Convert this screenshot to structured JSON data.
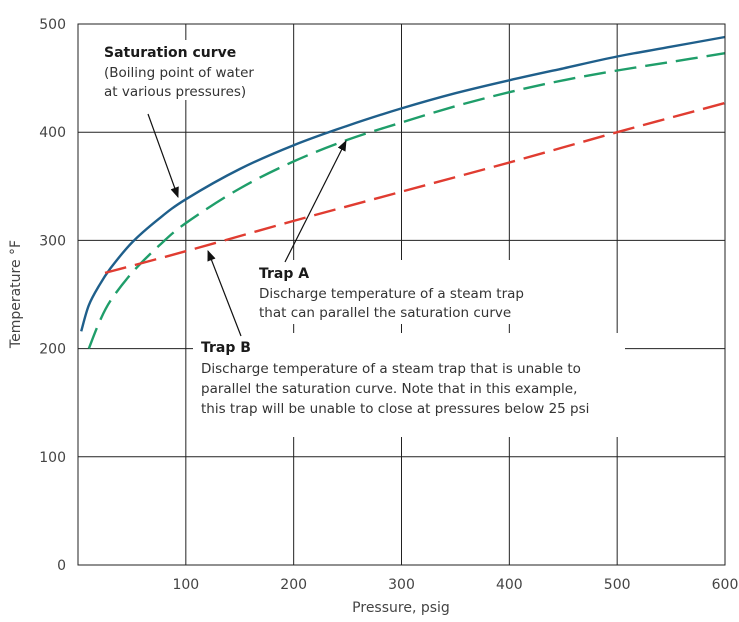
{
  "chart_data": {
    "type": "line",
    "title": "",
    "xlabel": "Pressure, psig",
    "ylabel": "Temperature °F",
    "xlim": [
      0,
      600
    ],
    "ylim": [
      0,
      500
    ],
    "x_ticks": [
      {
        "value": 100,
        "label": "100"
      },
      {
        "value": 200,
        "label": "200"
      },
      {
        "value": 300,
        "label": "300"
      },
      {
        "value": 400,
        "label": "400"
      },
      {
        "value": 500,
        "label": "500"
      },
      {
        "value": 600,
        "label": "600"
      }
    ],
    "y_ticks": [
      {
        "value": 0,
        "label": "0"
      },
      {
        "value": 100,
        "label": "100"
      },
      {
        "value": 200,
        "label": "200"
      },
      {
        "value": 300,
        "label": "300"
      },
      {
        "value": 400,
        "label": "400"
      },
      {
        "value": 500,
        "label": "500"
      }
    ],
    "grid": true,
    "series": [
      {
        "key": "saturation",
        "color": "#1f5f8b",
        "dashed": false,
        "x": [
          3,
          10,
          20,
          30,
          50,
          75,
          100,
          150,
          200,
          250,
          300,
          350,
          400,
          450,
          500,
          550,
          600
        ],
        "y": [
          216,
          240,
          259,
          274,
          298,
          320,
          338,
          366,
          388,
          406,
          422,
          436,
          448,
          459,
          470,
          479,
          488
        ]
      },
      {
        "key": "trap-a",
        "color": "#1f9e6a",
        "dashed": true,
        "x": [
          10,
          20,
          30,
          50,
          75,
          100,
          150,
          200,
          250,
          300,
          350,
          400,
          450,
          500,
          550,
          600
        ],
        "y": [
          200,
          225,
          244,
          270,
          295,
          316,
          348,
          373,
          393,
          409,
          424,
          437,
          448,
          457,
          465,
          473
        ]
      },
      {
        "key": "trap-b",
        "color": "#e03c31",
        "dashed": true,
        "x": [
          25,
          100,
          200,
          300,
          400,
          500,
          600
        ],
        "y": [
          270,
          290,
          318,
          345,
          372,
          400,
          427
        ]
      }
    ],
    "annotations": {
      "saturation": {
        "heading": "Saturation curve",
        "lines": [
          "(Boiling point of water",
          "at various pressures)"
        ]
      },
      "trap_a": {
        "heading": "Trap A",
        "lines": [
          "Discharge temperature of a steam trap",
          "that can parallel the saturation curve"
        ]
      },
      "trap_b": {
        "heading": "Trap B",
        "lines": [
          "Discharge temperature of a steam trap that is unable to",
          "parallel the saturation curve. Note that in this example,",
          "this trap will be unable to close at pressures below 25 psi"
        ]
      }
    }
  }
}
